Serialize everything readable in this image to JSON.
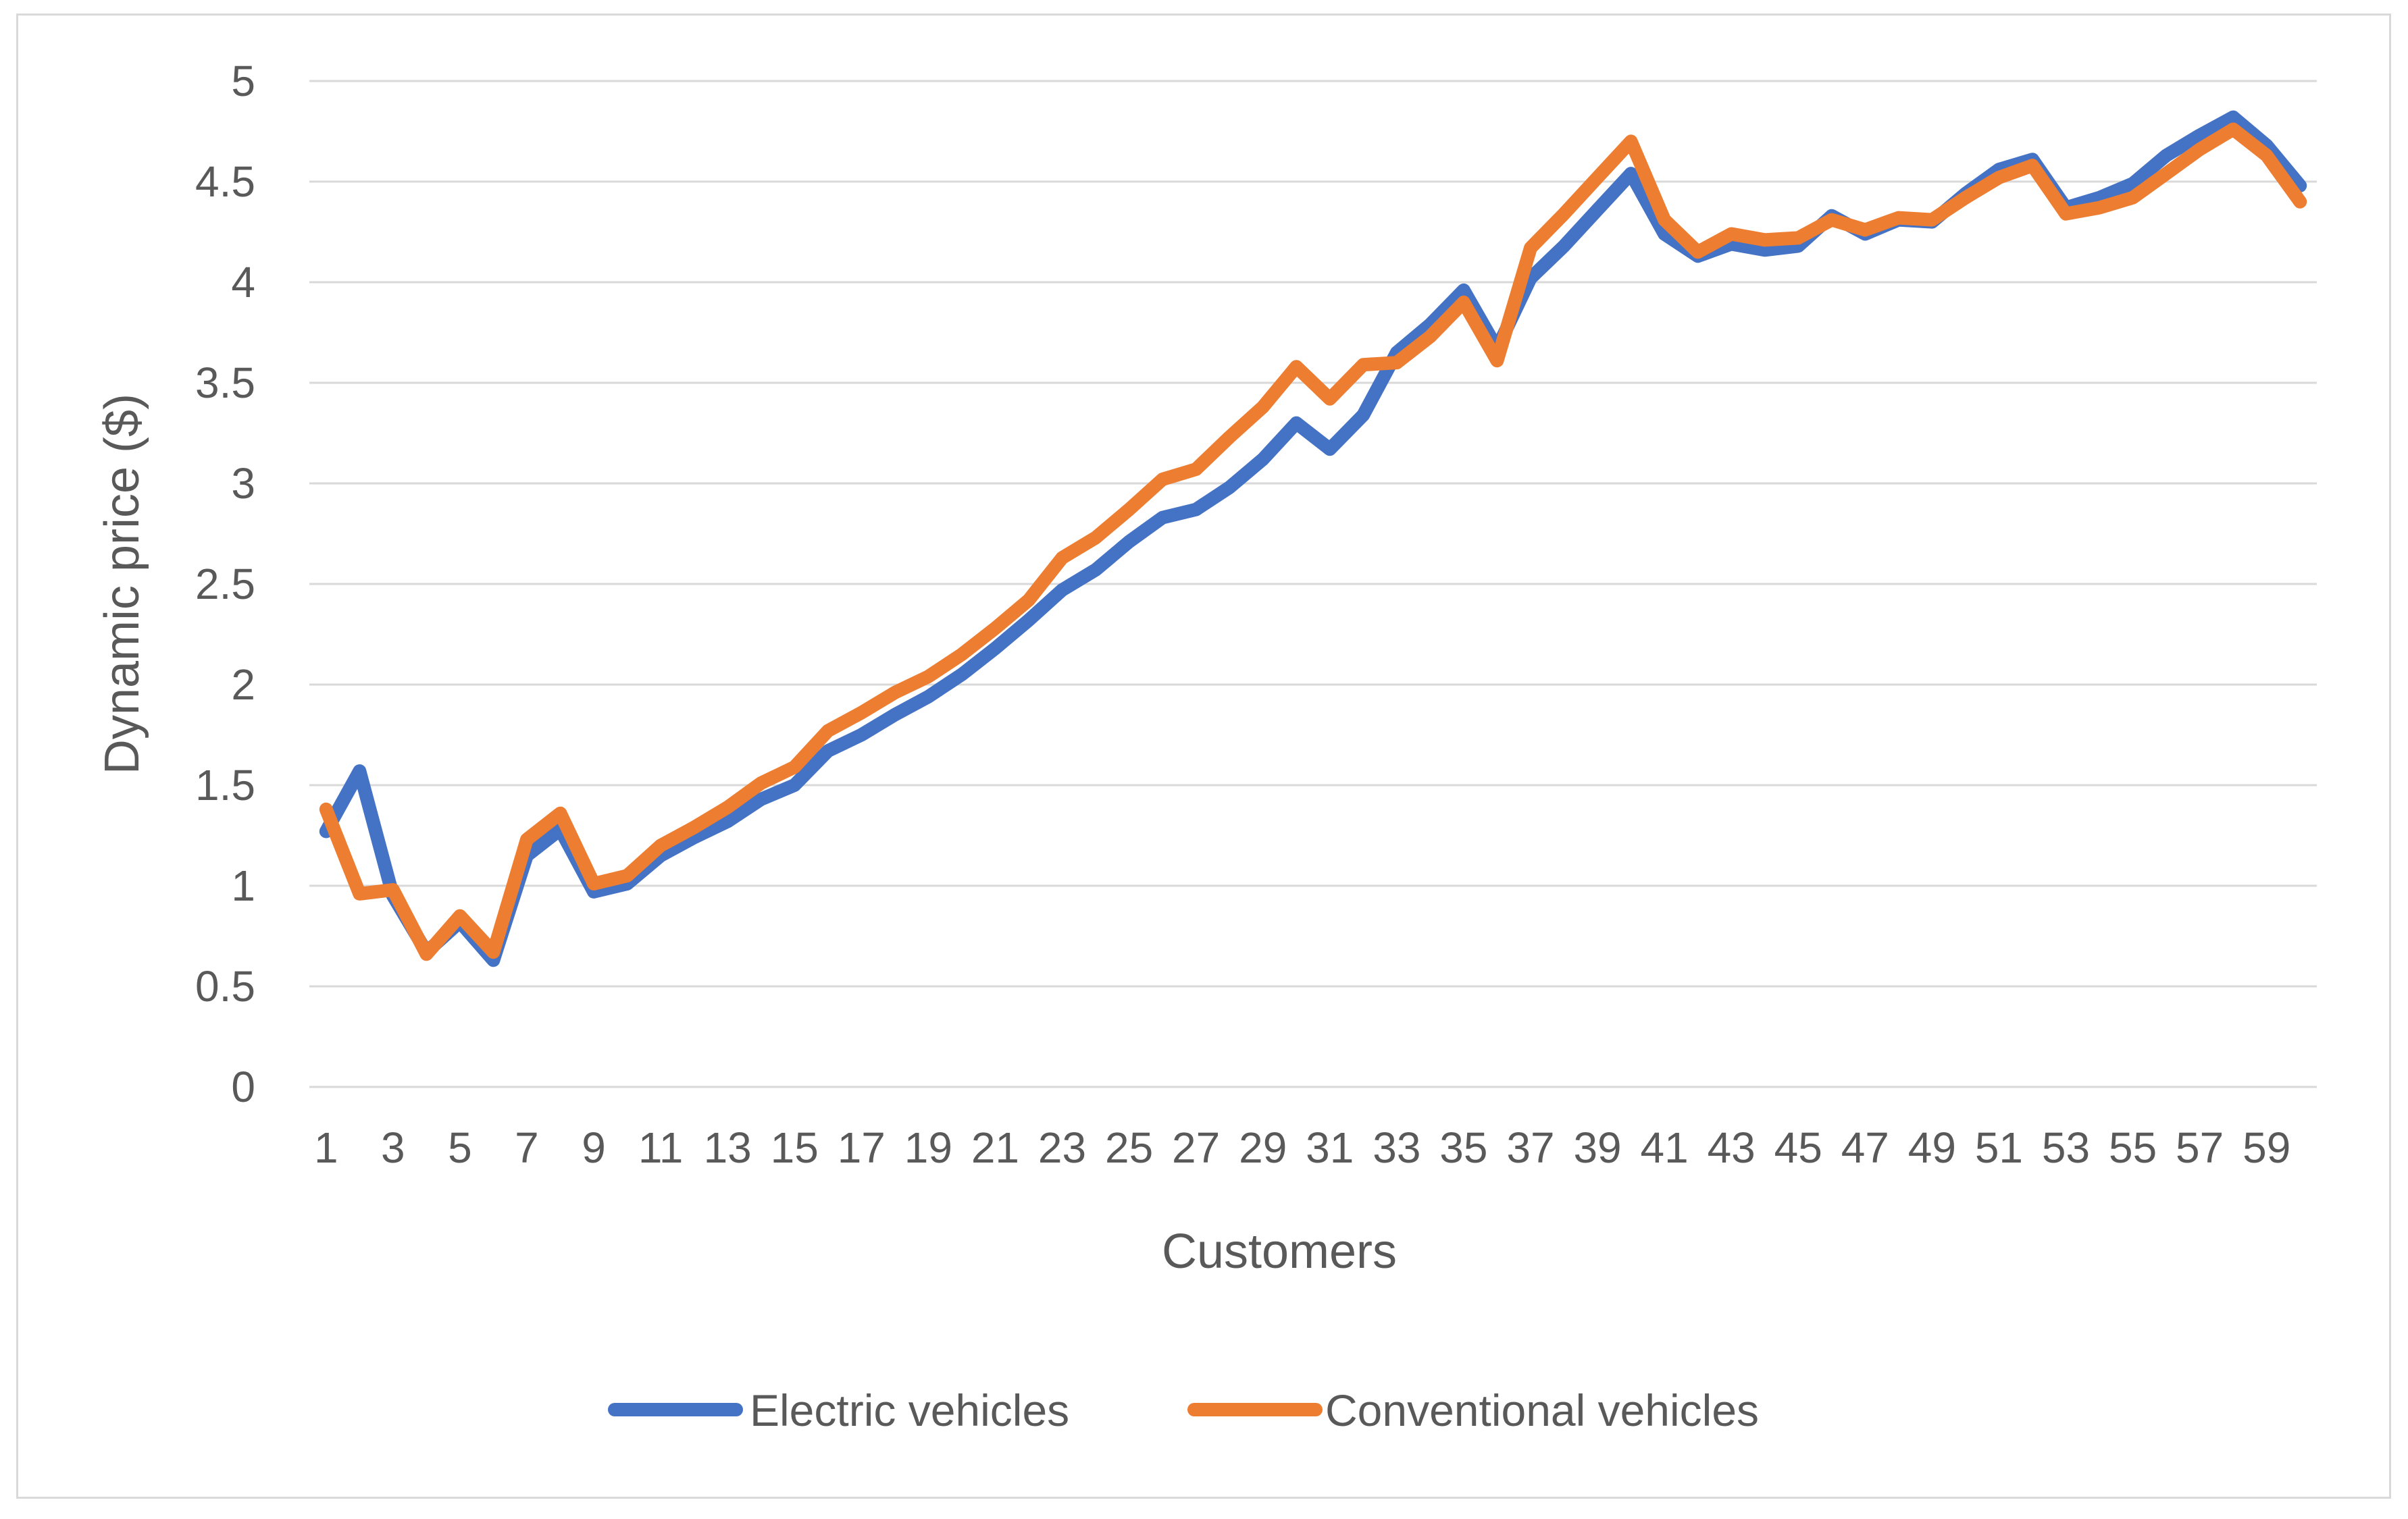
{
  "chart_data": {
    "type": "line",
    "title": "",
    "xlabel": "Customers",
    "ylabel": "Dynamic price ($)",
    "ylim": [
      0,
      5
    ],
    "ytick_step": 0.5,
    "yticks": [
      "0",
      "0.5",
      "1",
      "1.5",
      "2",
      "2.5",
      "3",
      "3.5",
      "4",
      "4.5",
      "5"
    ],
    "x": [
      1,
      2,
      3,
      4,
      5,
      6,
      7,
      8,
      9,
      10,
      11,
      12,
      13,
      14,
      15,
      16,
      17,
      18,
      19,
      20,
      21,
      22,
      23,
      24,
      25,
      26,
      27,
      28,
      29,
      30,
      31,
      32,
      33,
      34,
      35,
      36,
      37,
      38,
      39,
      40,
      41,
      42,
      43,
      44,
      45,
      46,
      47,
      48,
      49,
      50,
      51,
      52,
      53,
      54,
      55,
      56,
      57,
      58,
      59,
      60
    ],
    "xtick_labels": [
      "1",
      "3",
      "5",
      "7",
      "9",
      "11",
      "13",
      "15",
      "17",
      "19",
      "21",
      "23",
      "25",
      "27",
      "29",
      "31",
      "33",
      "35",
      "37",
      "39",
      "41",
      "43",
      "45",
      "47",
      "49",
      "51",
      "53",
      "55",
      "57",
      "59"
    ],
    "grid": true,
    "legend_position": "bottom",
    "series": [
      {
        "name": "Electric vehicles",
        "color": "#4472C4",
        "values": [
          1.27,
          1.57,
          0.95,
          0.67,
          0.82,
          0.63,
          1.15,
          1.28,
          0.97,
          1.01,
          1.15,
          1.24,
          1.32,
          1.43,
          1.5,
          1.67,
          1.75,
          1.85,
          1.94,
          2.05,
          2.18,
          2.32,
          2.47,
          2.57,
          2.71,
          2.83,
          2.87,
          2.98,
          3.12,
          3.3,
          3.17,
          3.34,
          3.65,
          3.79,
          3.96,
          3.67,
          4.02,
          4.18,
          4.36,
          4.54,
          4.24,
          4.13,
          4.19,
          4.16,
          4.18,
          4.33,
          4.24,
          4.31,
          4.3,
          4.44,
          4.56,
          4.61,
          4.37,
          4.42,
          4.49,
          4.63,
          4.73,
          4.82,
          4.68,
          4.48
        ]
      },
      {
        "name": "Conventional vehicles",
        "color": "#ED7D31",
        "values": [
          1.38,
          0.96,
          0.98,
          0.66,
          0.85,
          0.67,
          1.23,
          1.36,
          1.01,
          1.05,
          1.2,
          1.29,
          1.39,
          1.51,
          1.59,
          1.77,
          1.86,
          1.96,
          2.04,
          2.15,
          2.28,
          2.42,
          2.63,
          2.73,
          2.87,
          3.02,
          3.07,
          3.23,
          3.38,
          3.58,
          3.42,
          3.59,
          3.6,
          3.73,
          3.9,
          3.61,
          4.17,
          4.34,
          4.52,
          4.7,
          4.31,
          4.15,
          4.24,
          4.21,
          4.22,
          4.31,
          4.26,
          4.32,
          4.31,
          4.42,
          4.52,
          4.58,
          4.34,
          4.37,
          4.42,
          4.54,
          4.66,
          4.76,
          4.63,
          4.4
        ]
      }
    ]
  }
}
